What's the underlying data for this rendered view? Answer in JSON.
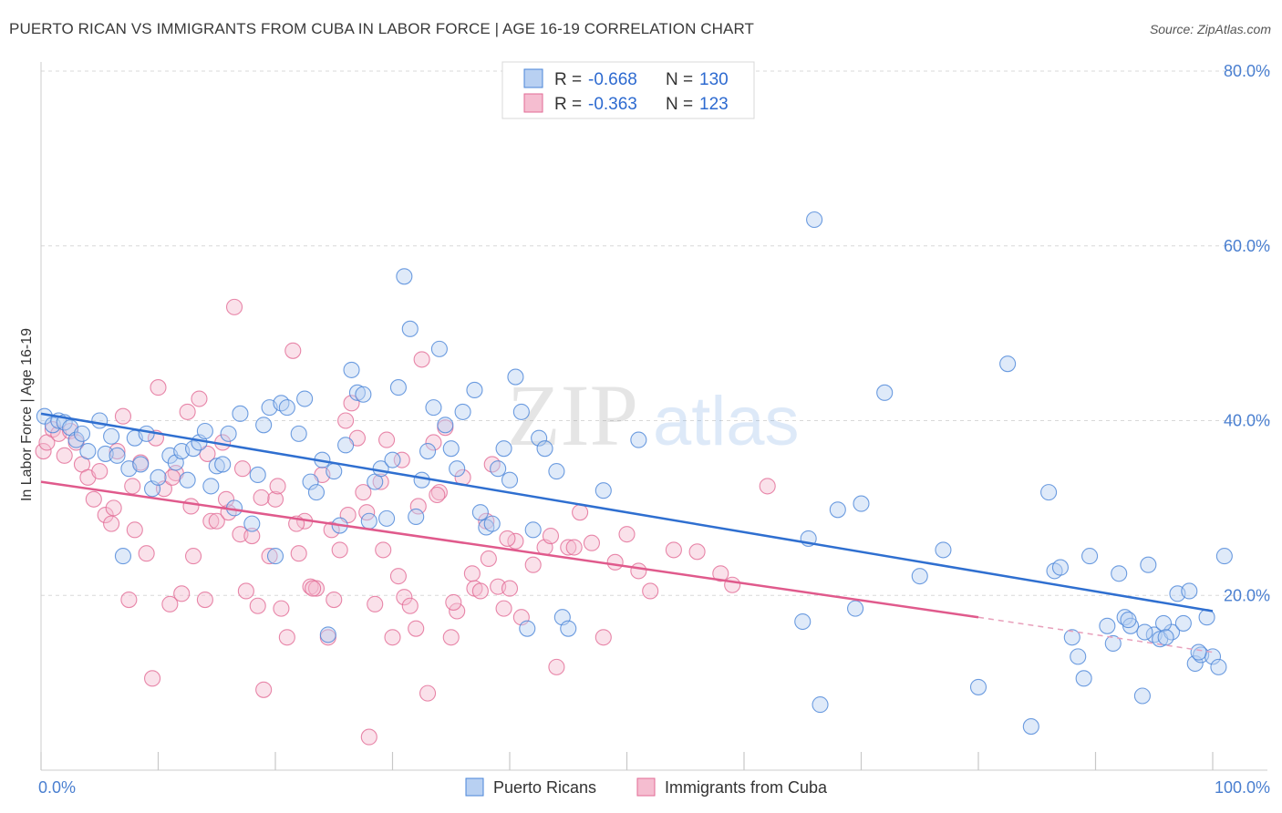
{
  "title": "PUERTO RICAN VS IMMIGRANTS FROM CUBA IN LABOR FORCE | AGE 16-19 CORRELATION CHART",
  "source": "Source: ZipAtlas.com",
  "watermark": {
    "zip": "ZIP",
    "atlas": "atlas"
  },
  "colors": {
    "blue": "#4a85d8",
    "blue_fill": "#b8d0f2",
    "pink": "#e26a95",
    "pink_fill": "#f5bdd0",
    "grid": "#d8d8d8",
    "axis_text": "#4a7fd0"
  },
  "legend": {
    "rows": [
      {
        "r_label": "R =",
        "r_value": "-0.668",
        "n_label": "N =",
        "n_value": "130"
      },
      {
        "r_label": "R =",
        "r_value": "-0.363",
        "n_label": "N =",
        "n_value": "123"
      }
    ]
  },
  "bottom_legend": [
    "Puerto Ricans",
    "Immigrants from Cuba"
  ],
  "chart_data": {
    "type": "scatter",
    "title": "PUERTO RICAN VS IMMIGRANTS FROM CUBA IN LABOR FORCE | AGE 16-19 CORRELATION CHART",
    "xlabel": "",
    "ylabel": "In Labor Force | Age 16-19",
    "xlim": [
      0,
      100
    ],
    "ylim": [
      0,
      80
    ],
    "x_tick_labels": [
      "0.0%",
      "100.0%"
    ],
    "y_ticks": [
      20,
      40,
      60,
      80
    ],
    "y_tick_labels": [
      "20.0%",
      "40.0%",
      "60.0%",
      "80.0%"
    ],
    "grid": true,
    "legend_position": "top-center",
    "series": [
      {
        "name": "Puerto Ricans",
        "r": -0.668,
        "n": 130,
        "trend": {
          "x": [
            0,
            100
          ],
          "y": [
            40.8,
            18.2
          ]
        },
        "points": [
          [
            0.3,
            40.5
          ],
          [
            1,
            39.5
          ],
          [
            1.5,
            40
          ],
          [
            2,
            39.8
          ],
          [
            2.5,
            39.2
          ],
          [
            3,
            37.8
          ],
          [
            3.5,
            38.5
          ],
          [
            4,
            36.5
          ],
          [
            5,
            40
          ],
          [
            5.5,
            36.2
          ],
          [
            6,
            38.2
          ],
          [
            6.5,
            36
          ],
          [
            7,
            24.5
          ],
          [
            7.5,
            34.5
          ],
          [
            8,
            38
          ],
          [
            8.5,
            35
          ],
          [
            9,
            38.5
          ],
          [
            9.5,
            32.2
          ],
          [
            10,
            33.5
          ],
          [
            11,
            36
          ],
          [
            11.5,
            35.2
          ],
          [
            12,
            36.5
          ],
          [
            12.5,
            33.2
          ],
          [
            13,
            36.8
          ],
          [
            13.5,
            37.5
          ],
          [
            14,
            38.8
          ],
          [
            14.5,
            32.5
          ],
          [
            15,
            34.8
          ],
          [
            15.5,
            35
          ],
          [
            16,
            38.5
          ],
          [
            16.5,
            30
          ],
          [
            17,
            40.8
          ],
          [
            18,
            28.2
          ],
          [
            18.5,
            33.8
          ],
          [
            19,
            39.5
          ],
          [
            19.5,
            41.5
          ],
          [
            20,
            24.5
          ],
          [
            20.5,
            42
          ],
          [
            21,
            41.5
          ],
          [
            22,
            38.5
          ],
          [
            22.5,
            42.5
          ],
          [
            23,
            33
          ],
          [
            23.5,
            31.8
          ],
          [
            24,
            35.5
          ],
          [
            24.5,
            15.5
          ],
          [
            25,
            34.2
          ],
          [
            25.5,
            28
          ],
          [
            26,
            37.2
          ],
          [
            26.5,
            45.8
          ],
          [
            27,
            43.2
          ],
          [
            27.5,
            43
          ],
          [
            28,
            28.5
          ],
          [
            28.5,
            33
          ],
          [
            29,
            34.5
          ],
          [
            29.5,
            28.8
          ],
          [
            30,
            35.5
          ],
          [
            30.5,
            43.8
          ],
          [
            31,
            56.5
          ],
          [
            31.5,
            50.5
          ],
          [
            32,
            29
          ],
          [
            32.5,
            33.2
          ],
          [
            33,
            36.5
          ],
          [
            33.5,
            41.5
          ],
          [
            34,
            48.2
          ],
          [
            34.5,
            39.5
          ],
          [
            35,
            36.8
          ],
          [
            35.5,
            34.5
          ],
          [
            36,
            41
          ],
          [
            37,
            43.5
          ],
          [
            37.5,
            29.5
          ],
          [
            38,
            27.8
          ],
          [
            38.5,
            28.2
          ],
          [
            39,
            34.5
          ],
          [
            39.5,
            36.8
          ],
          [
            40,
            33.2
          ],
          [
            40.5,
            45
          ],
          [
            41,
            41
          ],
          [
            41.5,
            16.2
          ],
          [
            42,
            27.5
          ],
          [
            42.5,
            38
          ],
          [
            43,
            36.8
          ],
          [
            44,
            34.2
          ],
          [
            44.5,
            17.5
          ],
          [
            45,
            16.2
          ],
          [
            48,
            32
          ],
          [
            51,
            37.8
          ],
          [
            66,
            63
          ],
          [
            65.5,
            26.5
          ],
          [
            65,
            17
          ],
          [
            66.5,
            7.5
          ],
          [
            68,
            29.8
          ],
          [
            69.5,
            18.5
          ],
          [
            70,
            30.5
          ],
          [
            72,
            43.2
          ],
          [
            75,
            22.2
          ],
          [
            77,
            25.2
          ],
          [
            80,
            9.5
          ],
          [
            82.5,
            46.5
          ],
          [
            84.5,
            5
          ],
          [
            86,
            31.8
          ],
          [
            86.5,
            22.8
          ],
          [
            87,
            23.2
          ],
          [
            88,
            15.2
          ],
          [
            88.5,
            13
          ],
          [
            89,
            10.5
          ],
          [
            89.5,
            24.5
          ],
          [
            91,
            16.5
          ],
          [
            91.5,
            14.5
          ],
          [
            92,
            22.5
          ],
          [
            92.5,
            17.5
          ],
          [
            93,
            16.5
          ],
          [
            94,
            8.5
          ],
          [
            94.5,
            23.5
          ],
          [
            95,
            15.5
          ],
          [
            95.5,
            15
          ],
          [
            96.5,
            15.8
          ],
          [
            97,
            20.2
          ],
          [
            97.5,
            16.8
          ],
          [
            98,
            20.5
          ],
          [
            98.5,
            12.2
          ],
          [
            99,
            13.2
          ],
          [
            99.5,
            17.5
          ],
          [
            100,
            13
          ],
          [
            100.5,
            11.8
          ],
          [
            101,
            24.5
          ],
          [
            95.8,
            16.8
          ],
          [
            96,
            15.2
          ],
          [
            94.2,
            15.8
          ],
          [
            92.8,
            17.2
          ],
          [
            98.8,
            13.5
          ]
        ]
      },
      {
        "name": "Immigrants from Cuba",
        "r": -0.363,
        "n": 123,
        "trend": {
          "x": [
            0,
            80
          ],
          "y": [
            33.0,
            17.5
          ]
        },
        "trend_dashed": {
          "x": [
            80,
            100
          ],
          "y": [
            17.5,
            13.5
          ]
        },
        "points": [
          [
            0.2,
            36.5
          ],
          [
            0.5,
            37.5
          ],
          [
            1,
            39
          ],
          [
            1.5,
            38.5
          ],
          [
            2,
            36
          ],
          [
            2.5,
            38.8
          ],
          [
            3,
            37.5
          ],
          [
            3.5,
            35
          ],
          [
            4,
            33.5
          ],
          [
            4.5,
            31
          ],
          [
            5,
            34.2
          ],
          [
            5.5,
            29.2
          ],
          [
            6,
            28.2
          ],
          [
            6.5,
            36.5
          ],
          [
            7,
            40.5
          ],
          [
            7.5,
            19.5
          ],
          [
            8,
            27.5
          ],
          [
            8.5,
            35.2
          ],
          [
            9,
            24.8
          ],
          [
            9.5,
            10.5
          ],
          [
            10,
            43.8
          ],
          [
            10.5,
            32.2
          ],
          [
            11,
            19
          ],
          [
            11.5,
            34
          ],
          [
            12,
            20.2
          ],
          [
            12.5,
            41
          ],
          [
            13,
            24.5
          ],
          [
            13.5,
            42.5
          ],
          [
            14,
            19.5
          ],
          [
            14.5,
            28.5
          ],
          [
            15,
            28.5
          ],
          [
            15.5,
            37.5
          ],
          [
            16,
            29.5
          ],
          [
            16.5,
            53
          ],
          [
            17,
            27
          ],
          [
            17.5,
            20.5
          ],
          [
            18,
            26.8
          ],
          [
            18.5,
            18.8
          ],
          [
            19,
            9.2
          ],
          [
            19.5,
            24.5
          ],
          [
            20,
            31
          ],
          [
            20.5,
            18.5
          ],
          [
            21,
            15.2
          ],
          [
            21.5,
            48
          ],
          [
            22,
            24.8
          ],
          [
            22.5,
            28.5
          ],
          [
            23,
            21
          ],
          [
            23.5,
            20.8
          ],
          [
            24,
            33.8
          ],
          [
            24.5,
            15.2
          ],
          [
            25,
            19.5
          ],
          [
            25.5,
            25.2
          ],
          [
            26,
            40
          ],
          [
            26.5,
            42
          ],
          [
            27,
            38
          ],
          [
            27.5,
            31.8
          ],
          [
            28,
            3.8
          ],
          [
            28.5,
            19
          ],
          [
            29,
            33
          ],
          [
            29.5,
            37.8
          ],
          [
            30,
            15.2
          ],
          [
            30.5,
            22.2
          ],
          [
            31,
            19.8
          ],
          [
            31.5,
            18.8
          ],
          [
            32,
            16.2
          ],
          [
            32.5,
            47
          ],
          [
            33,
            8.8
          ],
          [
            33.5,
            37.5
          ],
          [
            34,
            31.8
          ],
          [
            34.5,
            39.2
          ],
          [
            35,
            15.2
          ],
          [
            35.5,
            18.2
          ],
          [
            36,
            33.5
          ],
          [
            37,
            20.8
          ],
          [
            37.5,
            20.5
          ],
          [
            38,
            28.5
          ],
          [
            38.5,
            35
          ],
          [
            39,
            21
          ],
          [
            39.5,
            18.5
          ],
          [
            40,
            20.8
          ],
          [
            40.5,
            26.2
          ],
          [
            41,
            17.5
          ],
          [
            42,
            23.5
          ],
          [
            43,
            25.5
          ],
          [
            43.5,
            26.8
          ],
          [
            44,
            11.8
          ],
          [
            45,
            25.5
          ],
          [
            45.5,
            25.5
          ],
          [
            46,
            29.5
          ],
          [
            47,
            26
          ],
          [
            48,
            15.2
          ],
          [
            49,
            23.8
          ],
          [
            50,
            27
          ],
          [
            51,
            22.8
          ],
          [
            52,
            20.5
          ],
          [
            54,
            25.2
          ],
          [
            56,
            25
          ],
          [
            58,
            22.5
          ],
          [
            59,
            21.2
          ],
          [
            62,
            32.5
          ],
          [
            6.2,
            30
          ],
          [
            7.8,
            32.5
          ],
          [
            9.8,
            38
          ],
          [
            11.2,
            33.5
          ],
          [
            12.8,
            30.2
          ],
          [
            14.2,
            36.2
          ],
          [
            15.8,
            31
          ],
          [
            17.2,
            34.5
          ],
          [
            18.8,
            31.2
          ],
          [
            20.2,
            32.5
          ],
          [
            21.8,
            28.2
          ],
          [
            23.2,
            20.8
          ],
          [
            24.8,
            27.5
          ],
          [
            26.2,
            29.2
          ],
          [
            27.8,
            29.5
          ],
          [
            29.2,
            25.2
          ],
          [
            30.8,
            35.5
          ],
          [
            32.2,
            30.2
          ],
          [
            33.8,
            31.5
          ],
          [
            35.2,
            19.2
          ],
          [
            36.8,
            22.5
          ],
          [
            38.2,
            24.2
          ],
          [
            39.8,
            26.5
          ]
        ]
      }
    ]
  }
}
